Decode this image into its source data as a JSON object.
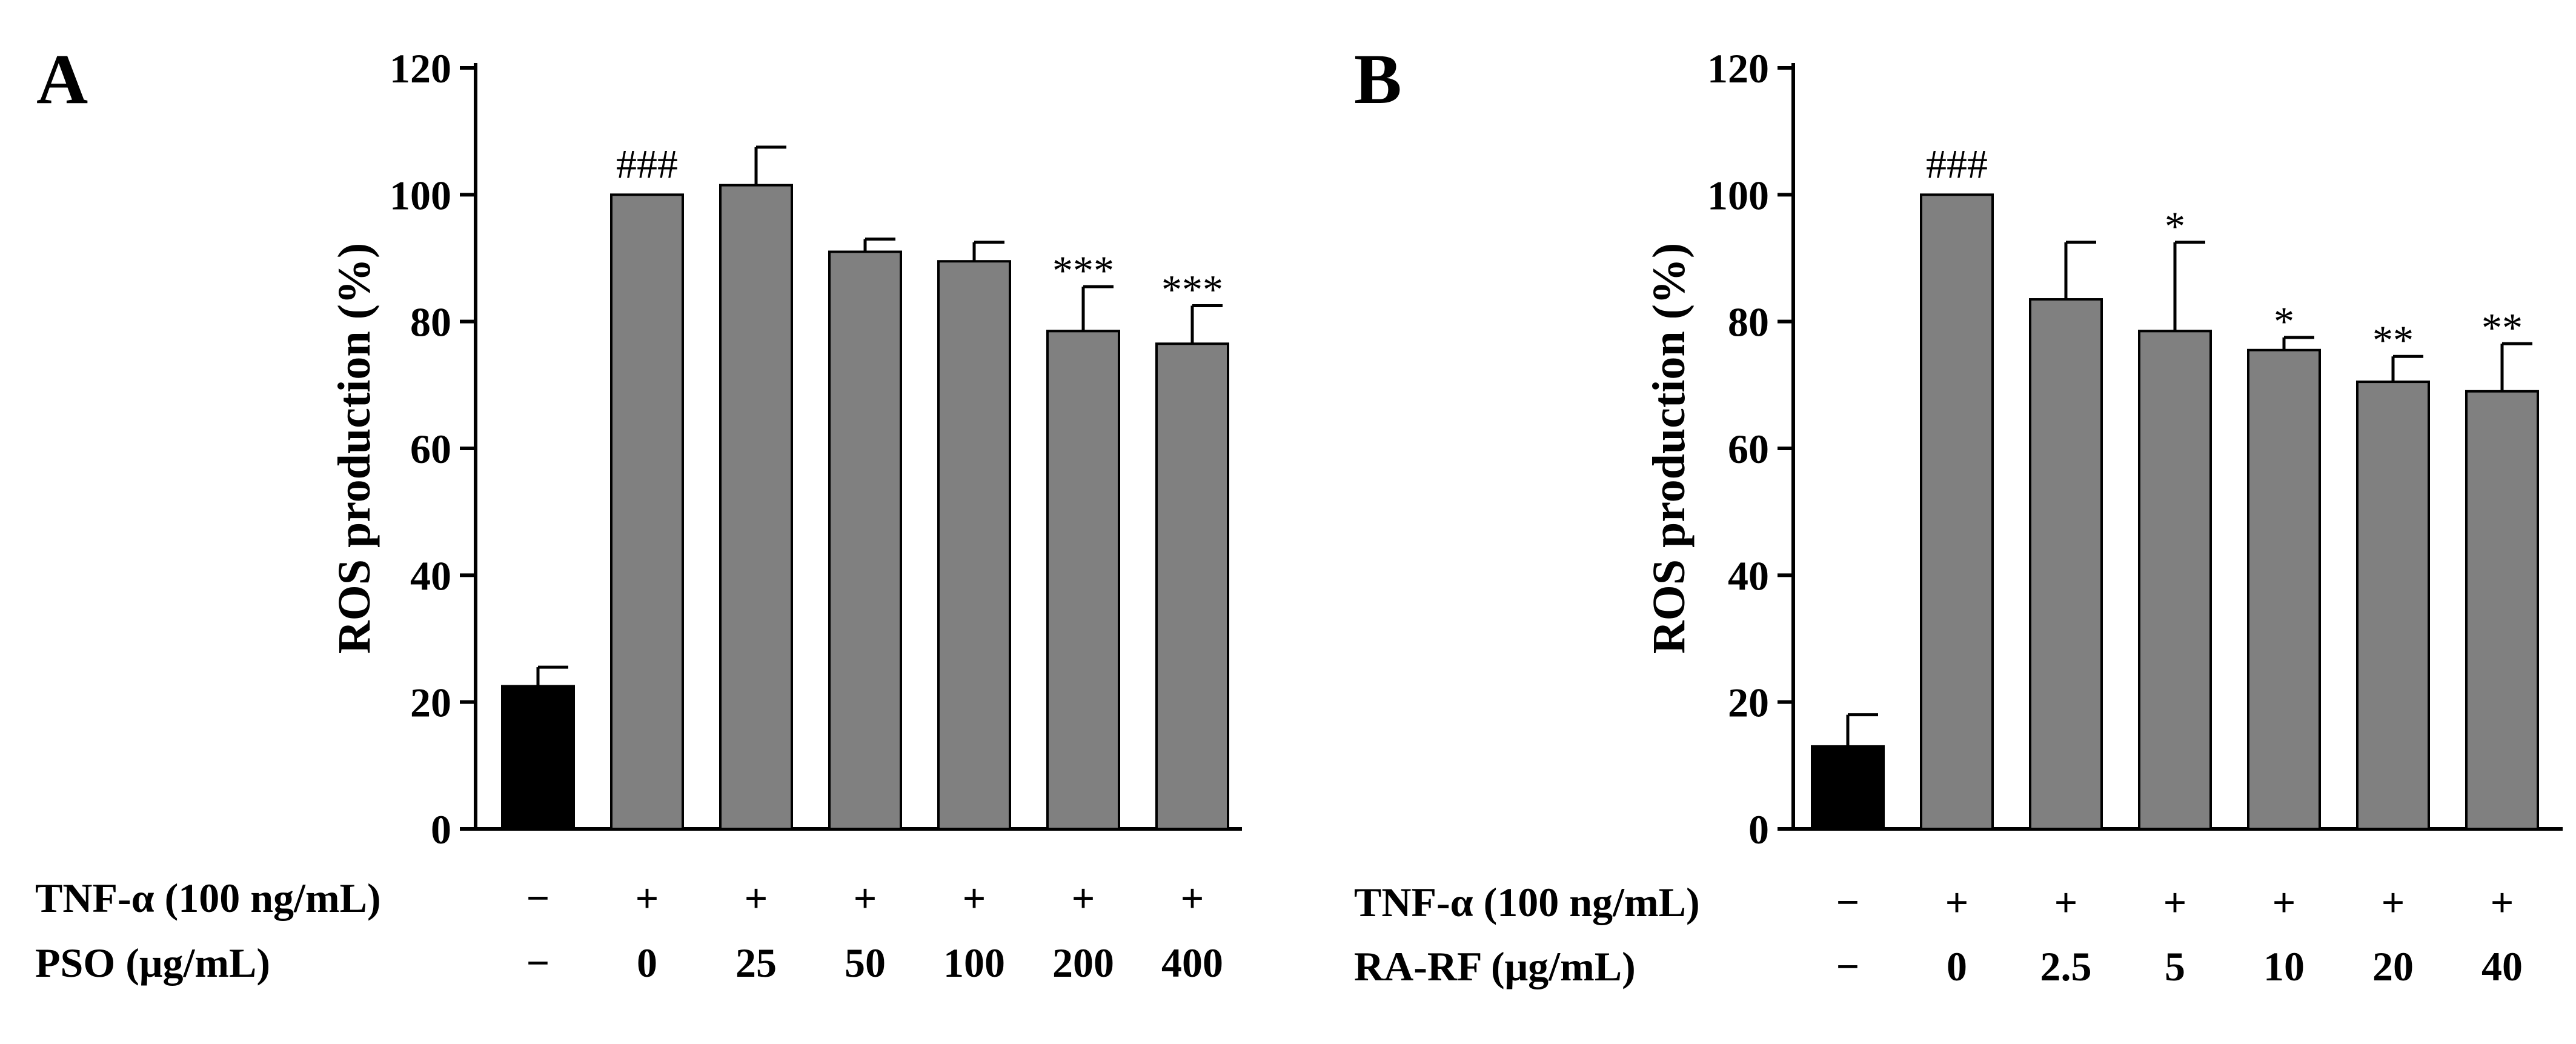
{
  "chart_data": [
    {
      "panel": "A",
      "type": "bar",
      "title": "",
      "xlabel": "",
      "ylabel": "ROS production (%)",
      "ylim": [
        0,
        120
      ],
      "yticks": [
        "0",
        "20",
        "40",
        "60",
        "80",
        "100",
        "120"
      ],
      "categories": [
        "−/−",
        "+/0",
        "+/25",
        "+/50",
        "+/100",
        "+/200",
        "+/400"
      ],
      "values": [
        22.5,
        100,
        101.5,
        91,
        89.5,
        78.5,
        76.5
      ],
      "errors": [
        3,
        0,
        6,
        2,
        3,
        7,
        6
      ],
      "bar_colors": [
        "#000000",
        "#808080",
        "#808080",
        "#808080",
        "#808080",
        "#808080",
        "#808080"
      ],
      "significance": [
        "",
        "###",
        "",
        "",
        "",
        "***",
        "***"
      ],
      "treatment_rows": [
        {
          "label": "TNF-α (100 ng/mL)",
          "values": [
            "−",
            "+",
            "+",
            "+",
            "+",
            "+",
            "+"
          ]
        },
        {
          "label": "PSO (μg/mL)",
          "values": [
            "−",
            "0",
            "25",
            "50",
            "100",
            "200",
            "400"
          ]
        }
      ]
    },
    {
      "panel": "B",
      "type": "bar",
      "title": "",
      "xlabel": "",
      "ylabel": "ROS production (%)",
      "ylim": [
        0,
        120
      ],
      "yticks": [
        "0",
        "20",
        "40",
        "60",
        "80",
        "100",
        "120"
      ],
      "categories": [
        "−/−",
        "+/0",
        "+/2.5",
        "+/5",
        "+/10",
        "+/20",
        "+/40"
      ],
      "values": [
        13,
        100,
        83.5,
        78.5,
        75.5,
        70.5,
        69
      ],
      "errors": [
        5,
        0,
        9,
        14,
        2,
        4,
        7.5
      ],
      "bar_colors": [
        "#000000",
        "#808080",
        "#808080",
        "#808080",
        "#808080",
        "#808080",
        "#808080"
      ],
      "significance": [
        "",
        "###",
        "",
        "*",
        "*",
        "**",
        "**"
      ],
      "treatment_rows": [
        {
          "label": "TNF-α (100 ng/mL)",
          "values": [
            "−",
            "+",
            "+",
            "+",
            "+",
            "+",
            "+"
          ]
        },
        {
          "label": "RA-RF (μg/mL)",
          "values": [
            "−",
            "0",
            "2.5",
            "5",
            "10",
            "20",
            "40"
          ]
        }
      ]
    }
  ]
}
